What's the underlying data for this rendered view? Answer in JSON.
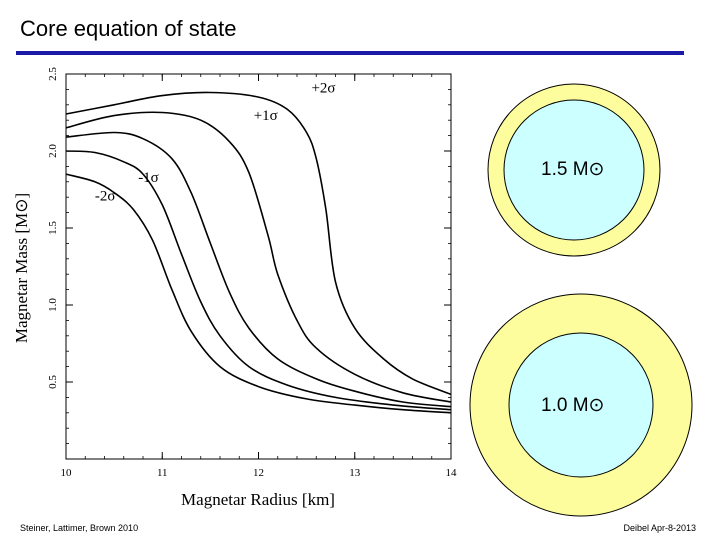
{
  "slide": {
    "title": "Core equation of state",
    "footer_left": "Steiner, Lattimer, Brown 2010",
    "footer_right": "Deibel Apr-8-2013",
    "accent_color": "#1a1aa6"
  },
  "chart_data": {
    "type": "line",
    "title": "",
    "xlabel": "Magnetar Radius [km]",
    "ylabel": "Magnetar Mass [M⊙]",
    "xlim": [
      10,
      14
    ],
    "ylim": [
      0,
      2.5
    ],
    "x_ticks": [
      "10",
      "11",
      "12",
      "13",
      "14"
    ],
    "y_ticks": [
      "0.5",
      "1.0",
      "1.5",
      "2.0",
      "2.5"
    ],
    "grid": false,
    "series": [
      {
        "name": "+2σ",
        "x": [
          10.0,
          10.5,
          11.0,
          11.5,
          12.0,
          12.3,
          12.5,
          12.6,
          12.7,
          12.8,
          13.0,
          13.3,
          13.6,
          14.0
        ],
        "y": [
          2.24,
          2.3,
          2.36,
          2.38,
          2.35,
          2.27,
          2.12,
          1.95,
          1.62,
          1.15,
          0.85,
          0.65,
          0.52,
          0.42
        ]
      },
      {
        "name": "+1σ",
        "x": [
          10.0,
          10.5,
          11.0,
          11.4,
          11.7,
          11.9,
          12.1,
          12.2,
          12.4,
          12.6,
          13.0,
          13.5,
          14.0
        ],
        "y": [
          2.15,
          2.23,
          2.25,
          2.2,
          2.06,
          1.86,
          1.45,
          1.2,
          0.9,
          0.72,
          0.55,
          0.43,
          0.37
        ]
      },
      {
        "name": "",
        "x": [
          10.0,
          10.5,
          10.8,
          11.1,
          11.3,
          11.5,
          11.7,
          11.9,
          12.2,
          12.6,
          13.0,
          13.5,
          14.0
        ],
        "y": [
          2.09,
          2.12,
          2.08,
          1.95,
          1.73,
          1.4,
          1.08,
          0.85,
          0.65,
          0.52,
          0.44,
          0.37,
          0.34
        ]
      },
      {
        "name": "-1σ",
        "x": [
          10.0,
          10.3,
          10.6,
          10.8,
          11.0,
          11.2,
          11.4,
          11.6,
          11.9,
          12.3,
          12.8,
          13.4,
          14.0
        ],
        "y": [
          2.0,
          1.99,
          1.93,
          1.85,
          1.65,
          1.33,
          1.02,
          0.8,
          0.6,
          0.48,
          0.4,
          0.35,
          0.32
        ]
      },
      {
        "name": "-2σ",
        "x": [
          10.0,
          10.3,
          10.5,
          10.7,
          10.9,
          11.1,
          11.3,
          11.6,
          12.0,
          12.5,
          13.0,
          13.5,
          14.0
        ],
        "y": [
          1.85,
          1.8,
          1.73,
          1.62,
          1.42,
          1.1,
          0.83,
          0.6,
          0.47,
          0.39,
          0.35,
          0.32,
          0.3
        ]
      }
    ]
  },
  "stars": [
    {
      "label": "1.5 M⊙",
      "crust_color": "#fdfd9d",
      "core_color": "#ccffff"
    },
    {
      "label": "1.0 M⊙",
      "crust_color": "#fdfd9d",
      "core_color": "#ccffff"
    }
  ]
}
